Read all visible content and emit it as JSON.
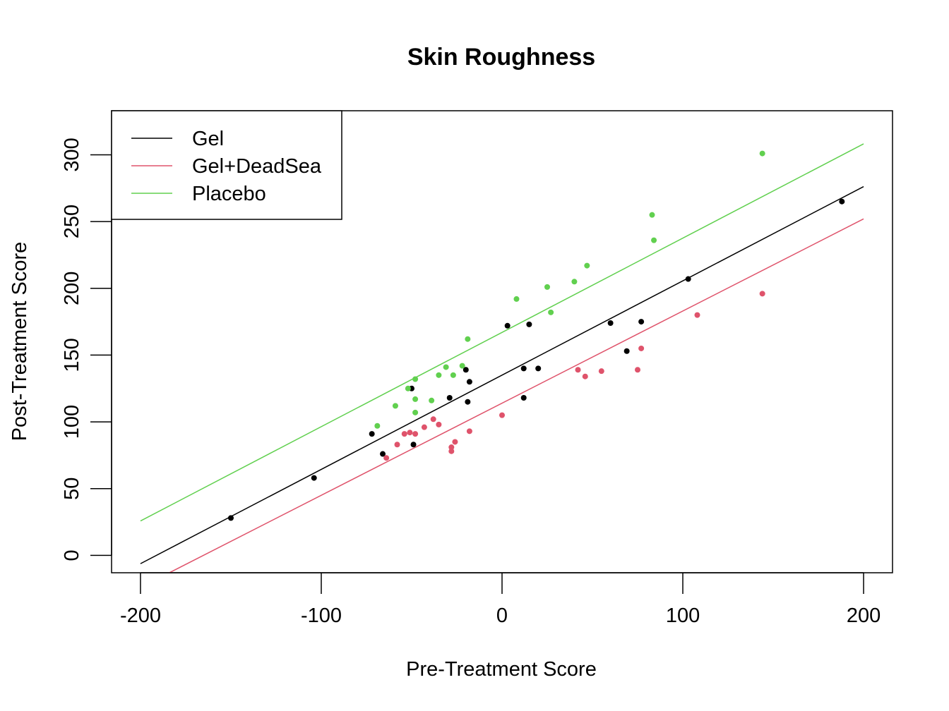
{
  "chart_data": {
    "type": "scatter",
    "title": "Skin Roughness",
    "xlabel": "Pre-Treatment Score",
    "ylabel": "Post-Treatment Score",
    "xlim": [
      -216,
      216
    ],
    "ylim": [
      -13,
      333
    ],
    "x_ticks": [
      -200,
      -100,
      0,
      100,
      200
    ],
    "y_ticks": [
      0,
      50,
      100,
      150,
      200,
      250,
      300
    ],
    "grid": false,
    "legend": {
      "position": "top-left"
    },
    "series": [
      {
        "name": "Gel",
        "color": "#000000",
        "fit_line": {
          "intercept": 135,
          "slope": 0.706
        },
        "points": [
          [
            -150,
            28
          ],
          [
            -104,
            58
          ],
          [
            -72,
            91
          ],
          [
            -66,
            76
          ],
          [
            -50,
            125
          ],
          [
            -49,
            83
          ],
          [
            -29,
            118
          ],
          [
            -20,
            139
          ],
          [
            -18,
            130
          ],
          [
            -19,
            115
          ],
          [
            3,
            172
          ],
          [
            15,
            173
          ],
          [
            12,
            140
          ],
          [
            12,
            118
          ],
          [
            20,
            140
          ],
          [
            60,
            174
          ],
          [
            69,
            153
          ],
          [
            77,
            175
          ],
          [
            103,
            207
          ],
          [
            188,
            265
          ]
        ]
      },
      {
        "name": "Gel+DeadSea",
        "color": "#DF536B",
        "fit_line": {
          "intercept": 114,
          "slope": 0.69
        },
        "points": [
          [
            -64,
            73
          ],
          [
            -58,
            83
          ],
          [
            -54,
            91
          ],
          [
            -51,
            92
          ],
          [
            -48,
            91
          ],
          [
            -43,
            96
          ],
          [
            -38,
            102
          ],
          [
            -35,
            98
          ],
          [
            -28,
            81
          ],
          [
            -28,
            78
          ],
          [
            -26,
            85
          ],
          [
            -18,
            93
          ],
          [
            0,
            105
          ],
          [
            42,
            139
          ],
          [
            46,
            134
          ],
          [
            55,
            138
          ],
          [
            75,
            139
          ],
          [
            77,
            155
          ],
          [
            108,
            180
          ],
          [
            144,
            196
          ]
        ]
      },
      {
        "name": "Placebo",
        "color": "#61D04F",
        "fit_line": {
          "intercept": 167,
          "slope": 0.706
        },
        "points": [
          [
            -69,
            97
          ],
          [
            -59,
            112
          ],
          [
            -52,
            125
          ],
          [
            -48,
            132
          ],
          [
            -48,
            117
          ],
          [
            -48,
            107
          ],
          [
            -39,
            116
          ],
          [
            -35,
            135
          ],
          [
            -31,
            141
          ],
          [
            -27,
            135
          ],
          [
            -22,
            142
          ],
          [
            -19,
            162
          ],
          [
            8,
            192
          ],
          [
            25,
            201
          ],
          [
            27,
            182
          ],
          [
            40,
            205
          ],
          [
            47,
            217
          ],
          [
            83,
            255
          ],
          [
            84,
            236
          ],
          [
            144,
            301
          ]
        ]
      }
    ]
  }
}
